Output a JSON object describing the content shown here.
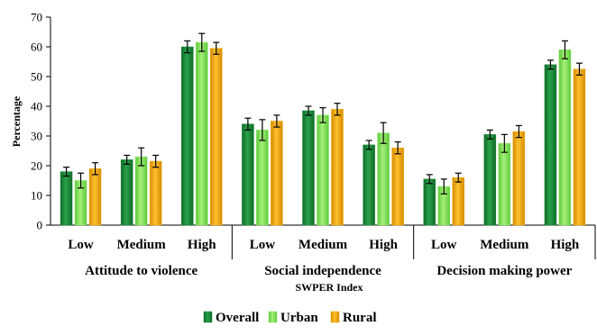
{
  "chart_data": {
    "type": "bar",
    "ylabel": "Percentage",
    "xlabel": "SWPER Index",
    "ylim": [
      0,
      70
    ],
    "yticks": [
      0,
      10,
      20,
      30,
      40,
      50,
      60,
      70
    ],
    "groups": [
      {
        "label": "Attitude to violence",
        "categories": [
          "Low",
          "Medium",
          "High"
        ]
      },
      {
        "label": "Social independence",
        "categories": [
          "Low",
          "Medium",
          "High"
        ]
      },
      {
        "label": "Decision making power",
        "categories": [
          "Low",
          "Medium",
          "High"
        ]
      }
    ],
    "series": [
      {
        "name": "Overall",
        "color": "#1f8a3a",
        "values": [
          18,
          22,
          60,
          34,
          38.5,
          27,
          15.5,
          30.5,
          54
        ],
        "errors": [
          1.5,
          1.5,
          2,
          2,
          1.5,
          1.5,
          1.5,
          1.5,
          1.5
        ]
      },
      {
        "name": "Urban",
        "color": "#84e05a",
        "values": [
          15,
          23,
          61.5,
          32,
          37,
          31,
          13,
          27.5,
          59
        ],
        "errors": [
          2.5,
          3,
          3,
          3.5,
          2.5,
          3.5,
          2.5,
          3,
          3
        ]
      },
      {
        "name": "Rural",
        "color": "#f2a900",
        "values": [
          19,
          21.5,
          59.5,
          35,
          39,
          26,
          16,
          31.5,
          52.5
        ],
        "errors": [
          2,
          2,
          2,
          2,
          2,
          2,
          1.5,
          2,
          2
        ]
      }
    ],
    "grid": false,
    "legend_position": "bottom"
  }
}
